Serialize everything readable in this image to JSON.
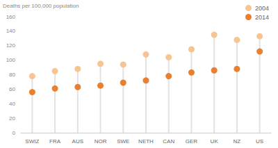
{
  "chart_data": {
    "type": "dot",
    "ylabel": "Deaths per 100,000 population",
    "categories": [
      "SWIZ",
      "FRA",
      "AUS",
      "NOR",
      "SWE",
      "NETH",
      "CAN",
      "GER",
      "UK",
      "NZ",
      "US"
    ],
    "series": [
      {
        "name": "2004",
        "color": "#f7c594",
        "values": [
          78,
          85,
          88,
          95,
          94,
          108,
          104,
          115,
          135,
          128,
          133
        ]
      },
      {
        "name": "2014",
        "color": "#e8802f",
        "values": [
          56,
          61,
          63,
          65,
          69,
          72,
          78,
          83,
          86,
          88,
          112
        ]
      }
    ],
    "ylim": [
      0,
      160
    ],
    "yticks": [
      0,
      20,
      40,
      60,
      80,
      100,
      120,
      140,
      160
    ],
    "grid": false,
    "legend": "top-right",
    "marker": "circle"
  }
}
